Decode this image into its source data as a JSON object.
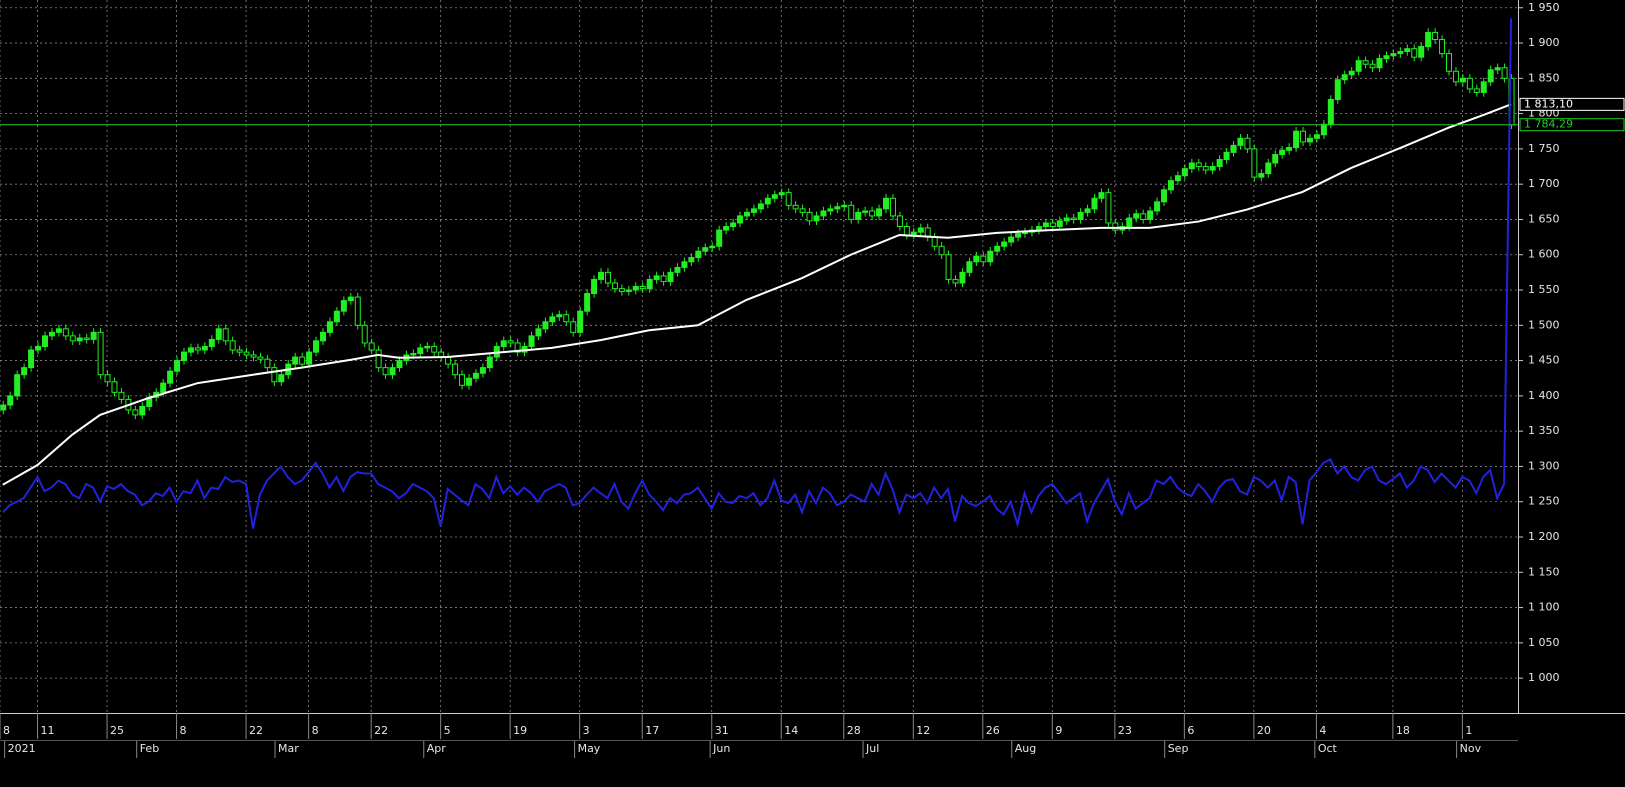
{
  "chart_data": {
    "type": "candlestick",
    "xlim": [
      -0.4,
      218
    ],
    "ylim": [
      952,
      1961
    ],
    "grid": true,
    "up_color": "#22ee22",
    "down_color": "#000000",
    "wick_color": "#22ee22",
    "yticks": [
      {
        "value": 1000,
        "label": "1 000"
      },
      {
        "value": 1050,
        "label": "1 050"
      },
      {
        "value": 1100,
        "label": "1 100"
      },
      {
        "value": 1150,
        "label": "1 150"
      },
      {
        "value": 1200,
        "label": "1 200"
      },
      {
        "value": 1250,
        "label": "1 250"
      },
      {
        "value": 1300,
        "label": "1 300"
      },
      {
        "value": 1350,
        "label": "1 350"
      },
      {
        "value": 1400,
        "label": "1 400"
      },
      {
        "value": 1450,
        "label": "1 450"
      },
      {
        "value": 1500,
        "label": "1 500"
      },
      {
        "value": 1550,
        "label": "1 550"
      },
      {
        "value": 1600,
        "label": "1 600"
      },
      {
        "value": 1650,
        "label": "1 650"
      },
      {
        "value": 1700,
        "label": "1 700"
      },
      {
        "value": 1750,
        "label": "1 750"
      },
      {
        "value": 1800,
        "label": "1 800"
      },
      {
        "value": 1850,
        "label": "1 850"
      },
      {
        "value": 1900,
        "label": "1 900"
      },
      {
        "value": 1950,
        "label": "1 950"
      }
    ],
    "xticks": [
      {
        "value": -0.4,
        "label": "8"
      },
      {
        "value": 5,
        "label": "11"
      },
      {
        "value": 15,
        "label": "25"
      },
      {
        "value": 25,
        "label": "8"
      },
      {
        "value": 35,
        "label": "22"
      },
      {
        "value": 44,
        "label": "8"
      },
      {
        "value": 53,
        "label": "22"
      },
      {
        "value": 63,
        "label": "5"
      },
      {
        "value": 73,
        "label": "19"
      },
      {
        "value": 83,
        "label": "3"
      },
      {
        "value": 92,
        "label": "17"
      },
      {
        "value": 102,
        "label": "31"
      },
      {
        "value": 112,
        "label": "14"
      },
      {
        "value": 121,
        "label": "28"
      },
      {
        "value": 131,
        "label": "12"
      },
      {
        "value": 141,
        "label": "26"
      },
      {
        "value": 151,
        "label": "9"
      },
      {
        "value": 160,
        "label": "23"
      },
      {
        "value": 170,
        "label": "6"
      },
      {
        "value": 180,
        "label": "20"
      },
      {
        "value": 189,
        "label": "4"
      },
      {
        "value": 200,
        "label": "18"
      },
      {
        "value": 210,
        "label": "1"
      }
    ],
    "month_ticks": [
      {
        "value": 0.7,
        "label": "2021"
      },
      {
        "value": 19.7,
        "label": "Feb"
      },
      {
        "value": 39.6,
        "label": "Mar"
      },
      {
        "value": 61,
        "label": "Apr"
      },
      {
        "value": 82.7,
        "label": "May"
      },
      {
        "value": 102.2,
        "label": "Jun"
      },
      {
        "value": 124.2,
        "label": "Jul"
      },
      {
        "value": 145.6,
        "label": "Aug"
      },
      {
        "value": 167.6,
        "label": "Sep"
      },
      {
        "value": 189.2,
        "label": "Oct"
      },
      {
        "value": 209.6,
        "label": "Nov"
      }
    ],
    "open": [
      1380,
      1387,
      1400,
      1430,
      1440,
      1465,
      1470,
      1485,
      1490,
      1495,
      1485,
      1478,
      1482,
      1480,
      1490,
      1430,
      1420,
      1405,
      1395,
      1380,
      1373,
      1385,
      1398,
      1405,
      1418,
      1435,
      1450,
      1462,
      1468,
      1465,
      1470,
      1480,
      1495,
      1478,
      1465,
      1462,
      1458,
      1455,
      1452,
      1440,
      1420,
      1430,
      1445,
      1455,
      1445,
      1462,
      1478,
      1490,
      1505,
      1520,
      1535,
      1540,
      1500,
      1475,
      1465,
      1440,
      1430,
      1440,
      1450,
      1458,
      1460,
      1468,
      1470,
      1462,
      1455,
      1445,
      1430,
      1415,
      1425,
      1432,
      1440,
      1455,
      1470,
      1478,
      1475,
      1462,
      1470,
      1485,
      1495,
      1505,
      1512,
      1515,
      1505,
      1490,
      1520,
      1545,
      1565,
      1575,
      1560,
      1552,
      1548,
      1550,
      1555,
      1552,
      1565,
      1570,
      1562,
      1575,
      1582,
      1590,
      1596,
      1605,
      1610,
      1612,
      1635,
      1640,
      1645,
      1655,
      1660,
      1665,
      1672,
      1680,
      1685,
      1688,
      1670,
      1665,
      1660,
      1648,
      1655,
      1662,
      1665,
      1668,
      1670,
      1650,
      1660,
      1662,
      1655,
      1665,
      1680,
      1655,
      1640,
      1628,
      1632,
      1638,
      1625,
      1612,
      1600,
      1565,
      1560,
      1575,
      1590,
      1598,
      1590,
      1605,
      1612,
      1618,
      1625,
      1630,
      1632,
      1635,
      1640,
      1645,
      1640,
      1648,
      1652,
      1650,
      1660,
      1665,
      1680,
      1688,
      1645,
      1635,
      1640,
      1652,
      1658,
      1650,
      1662,
      1675,
      1692,
      1705,
      1712,
      1722,
      1730,
      1725,
      1720,
      1725,
      1735,
      1745,
      1755,
      1765,
      1750,
      1710,
      1715,
      1730,
      1742,
      1748,
      1752,
      1775,
      1760,
      1765,
      1770,
      1785,
      1820,
      1848,
      1855,
      1860,
      1875,
      1870,
      1865,
      1878,
      1882,
      1885,
      1888,
      1892,
      1880,
      1895,
      1915,
      1905,
      1885,
      1860,
      1845,
      1850,
      1835,
      1830,
      1845,
      1862,
      1865,
      1850
    ],
    "high": [
      1393,
      1406,
      1436,
      1446,
      1471,
      1476,
      1491,
      1496,
      1501,
      1501,
      1491,
      1488,
      1488,
      1496,
      1496,
      1436,
      1426,
      1411,
      1401,
      1386,
      1391,
      1404,
      1411,
      1424,
      1441,
      1456,
      1468,
      1474,
      1474,
      1476,
      1486,
      1501,
      1501,
      1484,
      1471,
      1468,
      1464,
      1461,
      1458,
      1446,
      1436,
      1451,
      1461,
      1461,
      1468,
      1484,
      1496,
      1511,
      1526,
      1541,
      1546,
      1546,
      1506,
      1481,
      1471,
      1446,
      1446,
      1456,
      1464,
      1466,
      1474,
      1476,
      1476,
      1468,
      1461,
      1451,
      1436,
      1431,
      1438,
      1446,
      1461,
      1476,
      1484,
      1484,
      1481,
      1476,
      1491,
      1501,
      1511,
      1518,
      1521,
      1521,
      1511,
      1526,
      1551,
      1571,
      1581,
      1581,
      1566,
      1558,
      1556,
      1561,
      1561,
      1571,
      1576,
      1576,
      1581,
      1588,
      1596,
      1602,
      1611,
      1616,
      1618,
      1641,
      1646,
      1651,
      1661,
      1666,
      1671,
      1678,
      1686,
      1691,
      1694,
      1694,
      1676,
      1671,
      1666,
      1661,
      1668,
      1671,
      1674,
      1676,
      1676,
      1666,
      1668,
      1668,
      1671,
      1686,
      1686,
      1661,
      1646,
      1638,
      1644,
      1644,
      1631,
      1618,
      1606,
      1571,
      1581,
      1596,
      1604,
      1604,
      1611,
      1618,
      1624,
      1631,
      1636,
      1638,
      1641,
      1646,
      1651,
      1651,
      1654,
      1658,
      1658,
      1666,
      1671,
      1686,
      1694,
      1694,
      1651,
      1646,
      1658,
      1664,
      1664,
      1668,
      1681,
      1698,
      1711,
      1718,
      1728,
      1736,
      1736,
      1731,
      1731,
      1741,
      1751,
      1761,
      1771,
      1771,
      1756,
      1721,
      1736,
      1748,
      1754,
      1758,
      1781,
      1781,
      1771,
      1776,
      1791,
      1826,
      1854,
      1861,
      1866,
      1881,
      1881,
      1876,
      1884,
      1888,
      1891,
      1894,
      1898,
      1898,
      1901,
      1921,
      1921,
      1911,
      1891,
      1866,
      1856,
      1856,
      1841,
      1851,
      1868,
      1871,
      1871,
      1856
    ],
    "low": [
      1374,
      1381,
      1394,
      1424,
      1434,
      1459,
      1464,
      1479,
      1484,
      1479,
      1472,
      1472,
      1474,
      1474,
      1424,
      1414,
      1399,
      1389,
      1374,
      1367,
      1367,
      1379,
      1392,
      1399,
      1412,
      1429,
      1444,
      1456,
      1459,
      1459,
      1464,
      1474,
      1472,
      1459,
      1456,
      1452,
      1449,
      1446,
      1434,
      1414,
      1414,
      1424,
      1439,
      1439,
      1439,
      1456,
      1472,
      1484,
      1499,
      1514,
      1529,
      1494,
      1469,
      1459,
      1434,
      1424,
      1424,
      1434,
      1444,
      1452,
      1454,
      1462,
      1456,
      1449,
      1439,
      1424,
      1409,
      1409,
      1419,
      1426,
      1434,
      1449,
      1464,
      1469,
      1456,
      1456,
      1464,
      1479,
      1489,
      1499,
      1506,
      1499,
      1484,
      1484,
      1514,
      1539,
      1559,
      1554,
      1546,
      1542,
      1542,
      1544,
      1546,
      1546,
      1559,
      1556,
      1556,
      1569,
      1576,
      1584,
      1590,
      1599,
      1604,
      1606,
      1629,
      1634,
      1639,
      1649,
      1654,
      1659,
      1666,
      1674,
      1679,
      1664,
      1659,
      1654,
      1642,
      1642,
      1649,
      1656,
      1659,
      1662,
      1644,
      1644,
      1654,
      1649,
      1649,
      1659,
      1649,
      1634,
      1622,
      1622,
      1626,
      1619,
      1606,
      1594,
      1559,
      1554,
      1554,
      1569,
      1584,
      1584,
      1584,
      1599,
      1606,
      1612,
      1619,
      1624,
      1626,
      1629,
      1634,
      1634,
      1634,
      1642,
      1644,
      1644,
      1654,
      1659,
      1674,
      1639,
      1629,
      1629,
      1634,
      1646,
      1644,
      1644,
      1656,
      1669,
      1686,
      1699,
      1706,
      1716,
      1719,
      1714,
      1714,
      1719,
      1729,
      1739,
      1749,
      1744,
      1704,
      1704,
      1709,
      1724,
      1736,
      1742,
      1746,
      1754,
      1754,
      1759,
      1764,
      1779,
      1814,
      1842,
      1849,
      1854,
      1864,
      1859,
      1859,
      1872,
      1876,
      1879,
      1882,
      1874,
      1874,
      1889,
      1899,
      1879,
      1854,
      1839,
      1839,
      1829,
      1824,
      1824,
      1839,
      1856,
      1844,
      1778
    ],
    "close": [
      1387,
      1400,
      1430,
      1440,
      1465,
      1470,
      1485,
      1490,
      1495,
      1485,
      1478,
      1482,
      1480,
      1490,
      1430,
      1420,
      1405,
      1395,
      1380,
      1373,
      1385,
      1398,
      1405,
      1418,
      1435,
      1450,
      1462,
      1468,
      1465,
      1470,
      1480,
      1495,
      1478,
      1465,
      1462,
      1458,
      1455,
      1452,
      1440,
      1420,
      1430,
      1445,
      1455,
      1445,
      1462,
      1478,
      1490,
      1505,
      1520,
      1535,
      1540,
      1500,
      1475,
      1465,
      1440,
      1430,
      1440,
      1450,
      1458,
      1460,
      1468,
      1470,
      1462,
      1455,
      1445,
      1430,
      1415,
      1425,
      1432,
      1440,
      1455,
      1470,
      1478,
      1475,
      1462,
      1470,
      1485,
      1495,
      1505,
      1512,
      1515,
      1505,
      1490,
      1520,
      1545,
      1565,
      1575,
      1560,
      1552,
      1548,
      1550,
      1555,
      1552,
      1565,
      1570,
      1562,
      1575,
      1582,
      1590,
      1596,
      1605,
      1610,
      1612,
      1635,
      1640,
      1645,
      1655,
      1660,
      1665,
      1672,
      1680,
      1685,
      1688,
      1670,
      1665,
      1660,
      1648,
      1655,
      1662,
      1665,
      1668,
      1670,
      1650,
      1660,
      1662,
      1655,
      1665,
      1680,
      1655,
      1640,
      1628,
      1632,
      1638,
      1625,
      1612,
      1600,
      1565,
      1560,
      1575,
      1590,
      1598,
      1590,
      1605,
      1612,
      1618,
      1625,
      1630,
      1632,
      1635,
      1640,
      1645,
      1640,
      1648,
      1652,
      1650,
      1660,
      1665,
      1680,
      1688,
      1645,
      1635,
      1640,
      1652,
      1658,
      1650,
      1662,
      1675,
      1692,
      1705,
      1712,
      1722,
      1730,
      1725,
      1720,
      1725,
      1735,
      1745,
      1755,
      1765,
      1750,
      1710,
      1715,
      1730,
      1742,
      1748,
      1752,
      1775,
      1760,
      1765,
      1770,
      1785,
      1820,
      1848,
      1855,
      1860,
      1875,
      1870,
      1865,
      1878,
      1882,
      1885,
      1888,
      1892,
      1880,
      1895,
      1915,
      1905,
      1885,
      1860,
      1845,
      1850,
      1835,
      1830,
      1845,
      1862,
      1865,
      1850,
      1784
    ],
    "moving_average": {
      "color": "#ffffff",
      "x": [
        0,
        5,
        10,
        14,
        21,
        28,
        36,
        43,
        50,
        54,
        57,
        64,
        72,
        79,
        86,
        93,
        100,
        107,
        115,
        122,
        129,
        136,
        143,
        151,
        158,
        165,
        172,
        179,
        187,
        194,
        201,
        208,
        213,
        217
      ],
      "values": [
        1274,
        1302,
        1345,
        1373,
        1397,
        1418,
        1430,
        1440,
        1451,
        1458,
        1454,
        1455,
        1462,
        1468,
        1479,
        1493,
        1500,
        1536,
        1567,
        1600,
        1628,
        1624,
        1631,
        1635,
        1638,
        1638,
        1647,
        1664,
        1689,
        1723,
        1751,
        1780,
        1798,
        1813.1
      ]
    },
    "indicator": {
      "color": "#2222dd",
      "values": [
        1235,
        1245,
        1250,
        1255,
        1270,
        1285,
        1265,
        1270,
        1280,
        1275,
        1260,
        1255,
        1275,
        1270,
        1250,
        1272,
        1268,
        1275,
        1265,
        1260,
        1245,
        1250,
        1262,
        1258,
        1270,
        1250,
        1265,
        1262,
        1280,
        1255,
        1270,
        1268,
        1285,
        1278,
        1280,
        1275,
        1212,
        1260,
        1280,
        1290,
        1300,
        1285,
        1275,
        1280,
        1292,
        1305,
        1290,
        1270,
        1285,
        1265,
        1285,
        1292,
        1290,
        1290,
        1275,
        1270,
        1265,
        1255,
        1262,
        1275,
        1270,
        1265,
        1255,
        1215,
        1268,
        1260,
        1252,
        1245,
        1275,
        1268,
        1255,
        1285,
        1262,
        1272,
        1260,
        1270,
        1262,
        1250,
        1265,
        1270,
        1275,
        1270,
        1245,
        1248,
        1260,
        1270,
        1262,
        1255,
        1275,
        1250,
        1240,
        1262,
        1280,
        1260,
        1250,
        1238,
        1255,
        1248,
        1260,
        1262,
        1270,
        1255,
        1240,
        1262,
        1250,
        1248,
        1258,
        1255,
        1262,
        1245,
        1255,
        1280,
        1252,
        1248,
        1260,
        1235,
        1265,
        1248,
        1270,
        1262,
        1245,
        1250,
        1260,
        1255,
        1250,
        1275,
        1260,
        1290,
        1268,
        1235,
        1260,
        1255,
        1262,
        1248,
        1270,
        1255,
        1268,
        1222,
        1258,
        1248,
        1244,
        1250,
        1258,
        1240,
        1232,
        1250,
        1218,
        1262,
        1235,
        1258,
        1270,
        1275,
        1262,
        1248,
        1255,
        1262,
        1222,
        1248,
        1265,
        1282,
        1250,
        1232,
        1262,
        1240,
        1248,
        1255,
        1280,
        1275,
        1285,
        1270,
        1262,
        1258,
        1275,
        1265,
        1250,
        1270,
        1280,
        1282,
        1265,
        1260,
        1285,
        1280,
        1270,
        1280,
        1252,
        1285,
        1278,
        1218,
        1280,
        1292,
        1305,
        1310,
        1290,
        1300,
        1285,
        1280,
        1295,
        1300,
        1280,
        1275,
        1282,
        1290,
        1270,
        1280,
        1300,
        1295,
        1278,
        1290,
        1280,
        1270,
        1285,
        1280,
        1262,
        1285,
        1295,
        1255,
        1275,
        1935
      ]
    },
    "price_labels": [
      {
        "value": 1813.1,
        "label": "1 813,10",
        "color": "#ffffff"
      },
      {
        "value": 1784.29,
        "label": "1 784,29",
        "color": "#22cc22"
      }
    ]
  }
}
